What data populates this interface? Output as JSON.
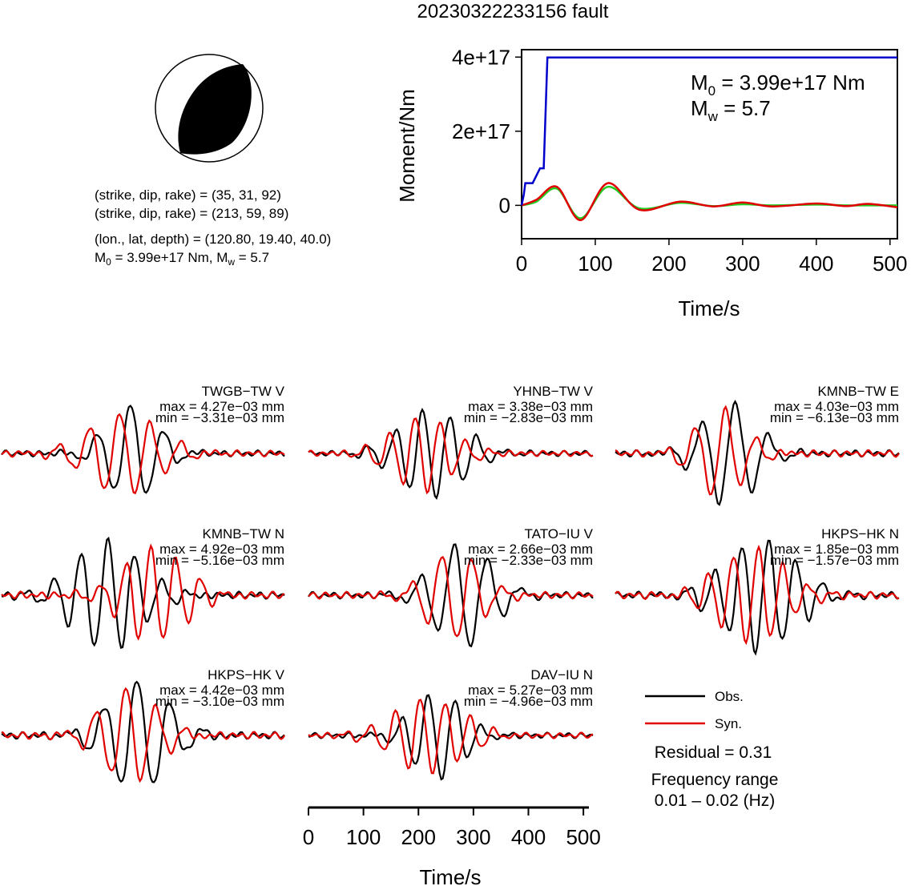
{
  "title": "20230322233156 fault",
  "source_info": {
    "plane1": "(strike, dip, rake) = (35, 31, 92)",
    "plane2": "(strike, dip, rake) = (213, 59, 89)",
    "location": "(lon., lat, depth) = (120.80, 19.40, 40.0)",
    "m0_label": "M",
    "m0_sub": "0",
    "m0_rest": " = 3.99e+17 Nm, M",
    "mw_sub": "w",
    "mw_rest": " = 5.7"
  },
  "moment_panel": {
    "m0_prefix": "M",
    "m0_sub": "0",
    "m0_value": " = 3.99e+17 Nm",
    "mw_prefix": "M",
    "mw_sub": "w",
    "mw_value": " = 5.7"
  },
  "legend": {
    "obs": "Obs.",
    "syn": "Syn."
  },
  "residual": "Residual = 0.31",
  "freq_label": "Frequency range",
  "freq_range": "0.01 – 0.02 (Hz)",
  "colors": {
    "obs": "#000000",
    "syn": "#e00000",
    "moment": "#0000cc",
    "green": "#22cc22"
  },
  "chart_data": [
    {
      "type": "line",
      "name": "moment",
      "xlabel": "Time/s",
      "ylabel": "Moment/Nm",
      "xlim": [
        0,
        510
      ],
      "ylim": [
        -9e+16,
        4.2e+17
      ],
      "xticks": [
        0,
        100,
        200,
        300,
        400,
        500
      ],
      "yticks": [
        0,
        2e+17,
        4e+17
      ],
      "ytick_labels": [
        "0",
        "2e+17",
        "4e+17"
      ],
      "series": [
        {
          "color": "blue",
          "x": [
            0,
            3,
            5,
            10,
            15,
            20,
            25,
            30,
            35,
            510
          ],
          "y": [
            0,
            3e+16,
            6e+16,
            6e+16,
            6e+16,
            8e+16,
            1e+17,
            1e+17,
            3.99e+17,
            3.99e+17
          ]
        },
        {
          "color": "red",
          "x": [
            0,
            20,
            48,
            80,
            117,
            160,
            215,
            260,
            300,
            340,
            400,
            440,
            470,
            510
          ],
          "y": [
            0,
            1.5e+16,
            5e+16,
            -4e+16,
            6e+16,
            -1.2e+16,
            1e+16,
            -3000000000000000.0,
            8000000000000000.0,
            -3000000000000000.0,
            5000000000000000.0,
            -2000000000000000.0,
            4000000000000000.0,
            -5000000000000000.0
          ]
        },
        {
          "color": "green",
          "x": [
            0,
            20,
            48,
            80,
            117,
            160,
            215,
            260,
            300,
            340,
            400,
            440,
            470,
            510
          ],
          "y": [
            0,
            1e+16,
            4.5e+16,
            -3.5e+16,
            5e+16,
            -8000000000000000.0,
            7000000000000000.0,
            -2000000000000000.0,
            3000000000000000.0,
            0,
            2000000000000000.0,
            0,
            0,
            0
          ]
        }
      ]
    },
    {
      "type": "line",
      "name": "waveforms",
      "xlabel": "Time/s",
      "xlim": [
        0,
        510
      ],
      "xticks": [
        0,
        100,
        200,
        300,
        400,
        500
      ],
      "traces": [
        {
          "station": "TWGB−TW V",
          "max": "max = 4.27e−03 mm",
          "min": "min = −3.31e−03 mm"
        },
        {
          "station": "YHNB−TW V",
          "max": "max = 3.38e−03 mm",
          "min": "min = −2.83e−03 mm"
        },
        {
          "station": "KMNB−TW E",
          "max": "max = 4.03e−03 mm",
          "min": "min = −6.13e−03 mm"
        },
        {
          "station": "KMNB−TW N",
          "max": "max = 4.92e−03 mm",
          "min": "min = −5.16e−03 mm"
        },
        {
          "station": "TATO−IU V",
          "max": "max = 2.66e−03 mm",
          "min": "min = −2.33e−03 mm"
        },
        {
          "station": "HKPS−HK N",
          "max": "max = 1.85e−03 mm",
          "min": "min = −1.57e−03 mm"
        },
        {
          "station": "HKPS−HK V",
          "max": "max = 4.42e−03 mm",
          "min": "min = −3.10e−03 mm"
        },
        {
          "station": "DAV−IU N",
          "max": "max = 5.27e−03 mm",
          "min": "min = −4.96e−03 mm"
        }
      ]
    }
  ]
}
